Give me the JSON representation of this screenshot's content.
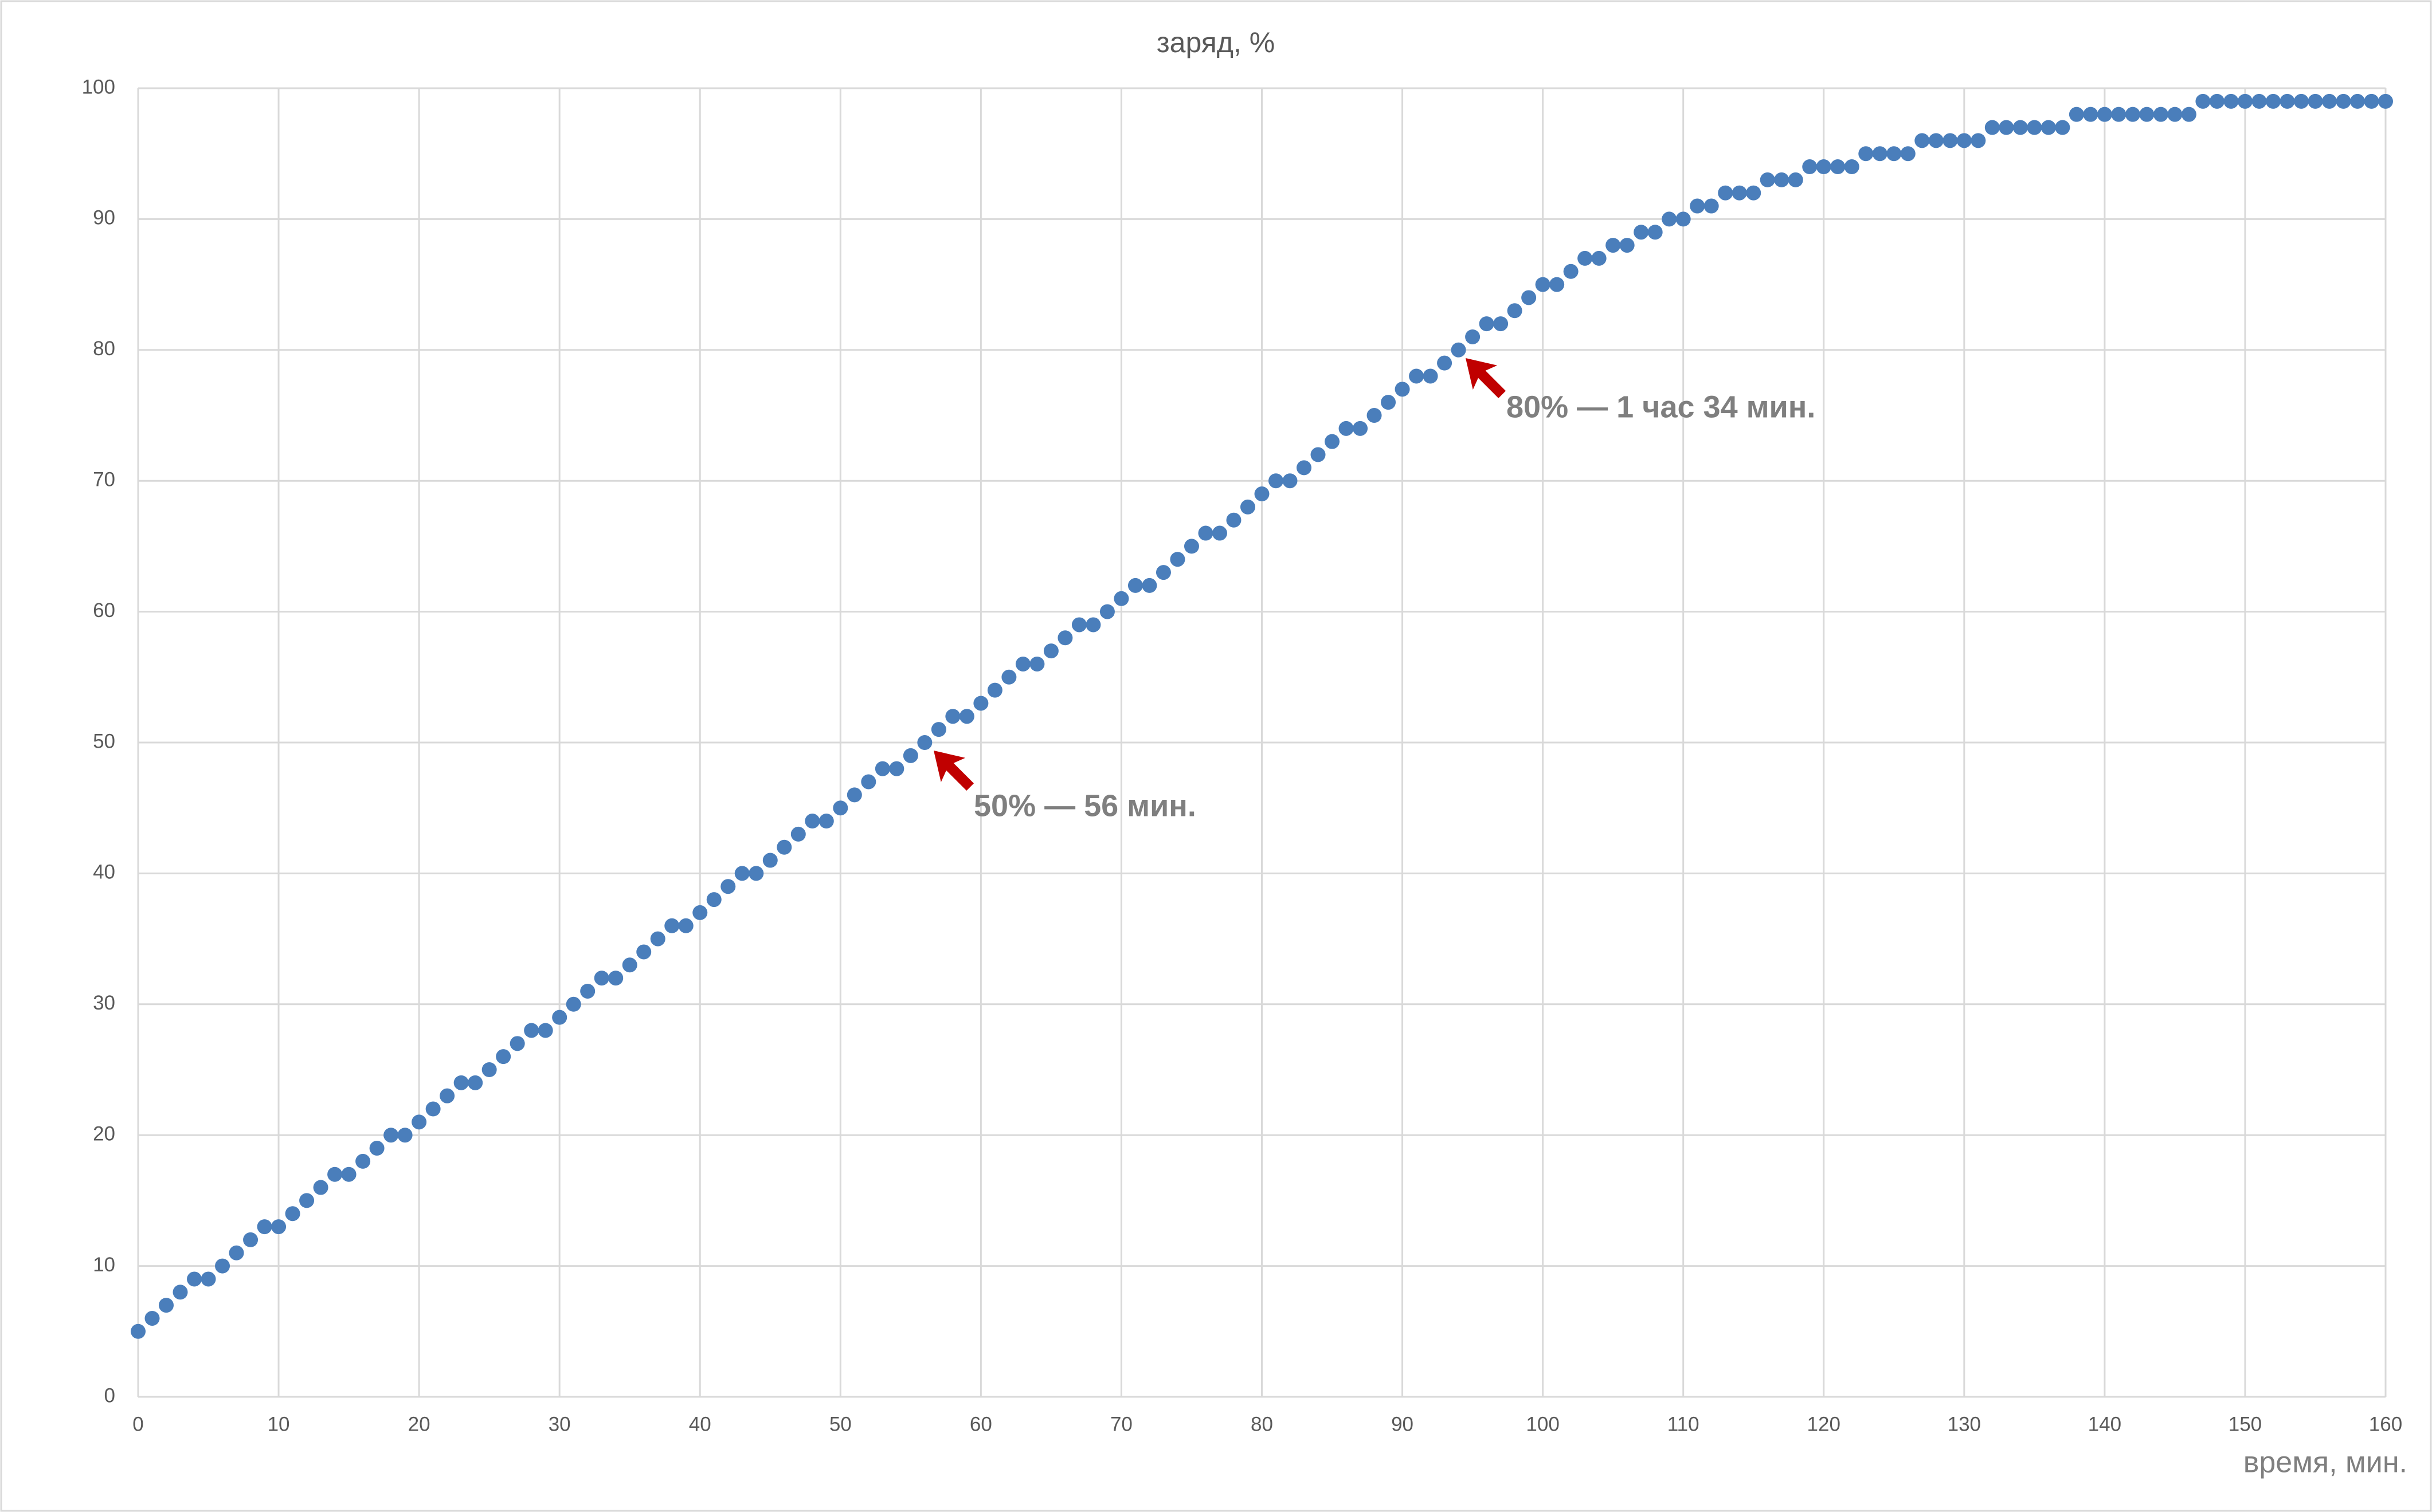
{
  "chart_data": {
    "type": "scatter",
    "title": "заряд, %",
    "x_label": "время, мин.",
    "annotations": [
      "50% — 56 мин.",
      "80% — 1 час 34 мин."
    ],
    "color": "#4a7ebb",
    "grid": true,
    "xlim": [
      0,
      160
    ],
    "xticks": [
      0,
      10,
      20,
      30,
      40,
      50,
      60,
      70,
      80,
      90,
      100,
      110,
      120,
      130,
      140,
      150,
      160
    ],
    "ylim": [
      0,
      100
    ],
    "yticks": [
      0,
      10,
      20,
      30,
      40,
      50,
      60,
      70,
      80,
      90,
      100
    ],
    "x": [
      0,
      1,
      2,
      3,
      4,
      5,
      6,
      7,
      8,
      9,
      10,
      11,
      12,
      13,
      14,
      15,
      16,
      17,
      18,
      19,
      20,
      21,
      22,
      23,
      24,
      25,
      26,
      27,
      28,
      29,
      30,
      31,
      32,
      33,
      34,
      35,
      36,
      37,
      38,
      39,
      40,
      41,
      42,
      43,
      44,
      45,
      46,
      47,
      48,
      49,
      50,
      51,
      52,
      53,
      54,
      55,
      56,
      57,
      58,
      59,
      60,
      61,
      62,
      63,
      64,
      65,
      66,
      67,
      68,
      69,
      70,
      71,
      72,
      73,
      74,
      75,
      76,
      77,
      78,
      79,
      80,
      81,
      82,
      83,
      84,
      85,
      86,
      87,
      88,
      89,
      90,
      91,
      92,
      93,
      94,
      95,
      96,
      97,
      98,
      99,
      100,
      101,
      102,
      103,
      104,
      105,
      106,
      107,
      108,
      109,
      110,
      111,
      112,
      113,
      114,
      115,
      116,
      117,
      118,
      119,
      120,
      121,
      122,
      123,
      124,
      125,
      126,
      127,
      128,
      129,
      130,
      131,
      132,
      133,
      134,
      135,
      136,
      137,
      138,
      139,
      140,
      141,
      142,
      143,
      144,
      145,
      146,
      147,
      148,
      149,
      150,
      151,
      152,
      153,
      154,
      155,
      156,
      157,
      158,
      159,
      160
    ],
    "values": [
      5,
      6,
      7,
      8,
      9,
      9,
      10,
      11,
      12,
      13,
      13,
      14,
      15,
      16,
      17,
      17,
      18,
      19,
      20,
      20,
      21,
      22,
      23,
      24,
      24,
      25,
      26,
      27,
      28,
      28,
      29,
      30,
      31,
      32,
      32,
      33,
      34,
      35,
      36,
      36,
      37,
      38,
      39,
      40,
      40,
      41,
      42,
      43,
      44,
      44,
      45,
      46,
      47,
      48,
      48,
      49,
      50,
      51,
      52,
      52,
      53,
      54,
      55,
      56,
      56,
      57,
      58,
      59,
      59,
      60,
      61,
      62,
      62,
      63,
      64,
      65,
      66,
      66,
      67,
      68,
      69,
      70,
      70,
      71,
      72,
      73,
      74,
      74,
      75,
      76,
      77,
      78,
      78,
      79,
      80,
      81,
      82,
      82,
      83,
      84,
      85,
      85,
      86,
      87,
      87,
      88,
      88,
      89,
      89,
      90,
      90,
      91,
      91,
      92,
      92,
      92,
      93,
      93,
      93,
      94,
      94,
      94,
      94,
      95,
      95,
      95,
      95,
      96,
      96,
      96,
      96,
      96,
      97,
      97,
      97,
      97,
      97,
      97,
      98,
      98,
      98,
      98,
      98,
      98,
      98,
      98,
      98,
      99,
      99,
      99,
      99,
      99,
      99,
      99,
      99,
      99,
      99,
      99,
      99,
      99,
      99
    ]
  }
}
